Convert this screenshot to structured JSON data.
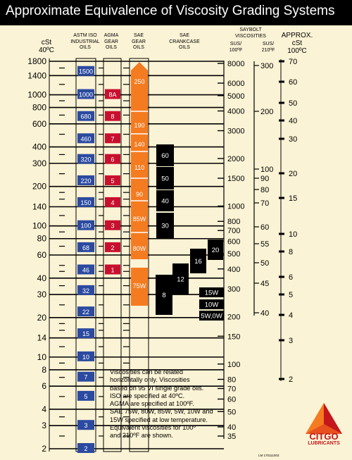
{
  "title": "Approximate Equivalence of Viscosity Grading Systems",
  "headers": {
    "cst40": [
      "cSt",
      "40ºC"
    ],
    "iso": [
      "ASTM ISO",
      "INDUSTRIAL",
      "OILS"
    ],
    "agma": [
      "AGMA",
      "GEAR",
      "OILS"
    ],
    "saegear": [
      "SAE",
      "GEAR",
      "OILS"
    ],
    "saecrank": [
      "SAE",
      "CRANKCASE",
      "OILS"
    ],
    "saybolt": [
      "SAYBOLT",
      "VISCOSITIES"
    ],
    "sus100": [
      "SUS/",
      "100ºF"
    ],
    "sus210": [
      "SUS/",
      "210ºF"
    ],
    "cst100": [
      "APPROX.",
      "cSt",
      "100ºC"
    ]
  },
  "note": "Viscosities can be related\nhorizontally only. Viscosities\nbased on 95 VI single grade oils.\nISO are specified at 40ºC.\nAGMA are specified at 100ºF.\nSAE 75W, 80W, 85W, 5W, 10W and\n15W specified at low temperature.\nEquivalent viscosities for 100º\nand 210ºF are shown.",
  "logo": {
    "brand": "CITGO",
    "sub": "LUBRICANTS"
  },
  "doc_ref": "LM 170111003",
  "colors": {
    "background": "#fbf3d5",
    "iso_blue": "#2b4aa0",
    "agma_red": "#c8102e",
    "sae_gear_orange": "#f47b20",
    "crankcase_black": "#000000"
  },
  "chart_data": {
    "type": "table",
    "title": "Approximate Equivalence of Viscosity Grading Systems",
    "axes": {
      "cst_40c": {
        "label": "cSt 40ºC",
        "scale": "log",
        "range": [
          2,
          1800
        ],
        "ticks": [
          "1800",
          "1400",
          "1000",
          "800",
          "600",
          "400",
          "300",
          "200",
          "140",
          "100",
          "80",
          "60",
          "40",
          "30",
          "20",
          "14",
          "10",
          "8",
          "6",
          "4",
          "3",
          "2"
        ]
      },
      "sus_100f": {
        "label": "SUS/100ºF",
        "scale": "log",
        "range": [
          35,
          8000
        ],
        "ticks": [
          "8000",
          "6000",
          "5000",
          "4000",
          "3000",
          "2000",
          "1500",
          "1000",
          "800",
          "700",
          "600",
          "500",
          "400",
          "300",
          "200",
          "150",
          "100",
          "80",
          "70",
          "60",
          "50",
          "40",
          "35"
        ]
      },
      "sus_210f": {
        "label": "SUS/210ºF",
        "ticks": [
          "300",
          "200",
          "100",
          "90",
          "80",
          "70",
          "60",
          "55",
          "50",
          "45",
          "40"
        ]
      },
      "cst_100c": {
        "label": "APPROX. cSt 100ºC",
        "ticks": [
          "70",
          "60",
          "50",
          "40",
          "30",
          "20",
          "15",
          "10",
          "8",
          "6",
          "5",
          "4",
          "3",
          "2"
        ]
      }
    },
    "iso_grades": [
      1500,
      1000,
      680,
      460,
      320,
      220,
      150,
      100,
      68,
      46,
      32,
      22,
      15,
      10,
      7,
      5,
      3,
      2
    ],
    "agma_grades": [
      "8A",
      "8",
      "7",
      "6",
      "5",
      "4",
      "3",
      "2",
      "1"
    ],
    "sae_gear_grades": [
      "250",
      "190",
      "140",
      "110",
      "90",
      "85W",
      "80W",
      "75W"
    ],
    "sae_crankcase_grades": [
      "60",
      "50",
      "40",
      "30",
      "20",
      "16",
      "12",
      "8",
      "15W",
      "10W",
      "5W,0W"
    ]
  }
}
